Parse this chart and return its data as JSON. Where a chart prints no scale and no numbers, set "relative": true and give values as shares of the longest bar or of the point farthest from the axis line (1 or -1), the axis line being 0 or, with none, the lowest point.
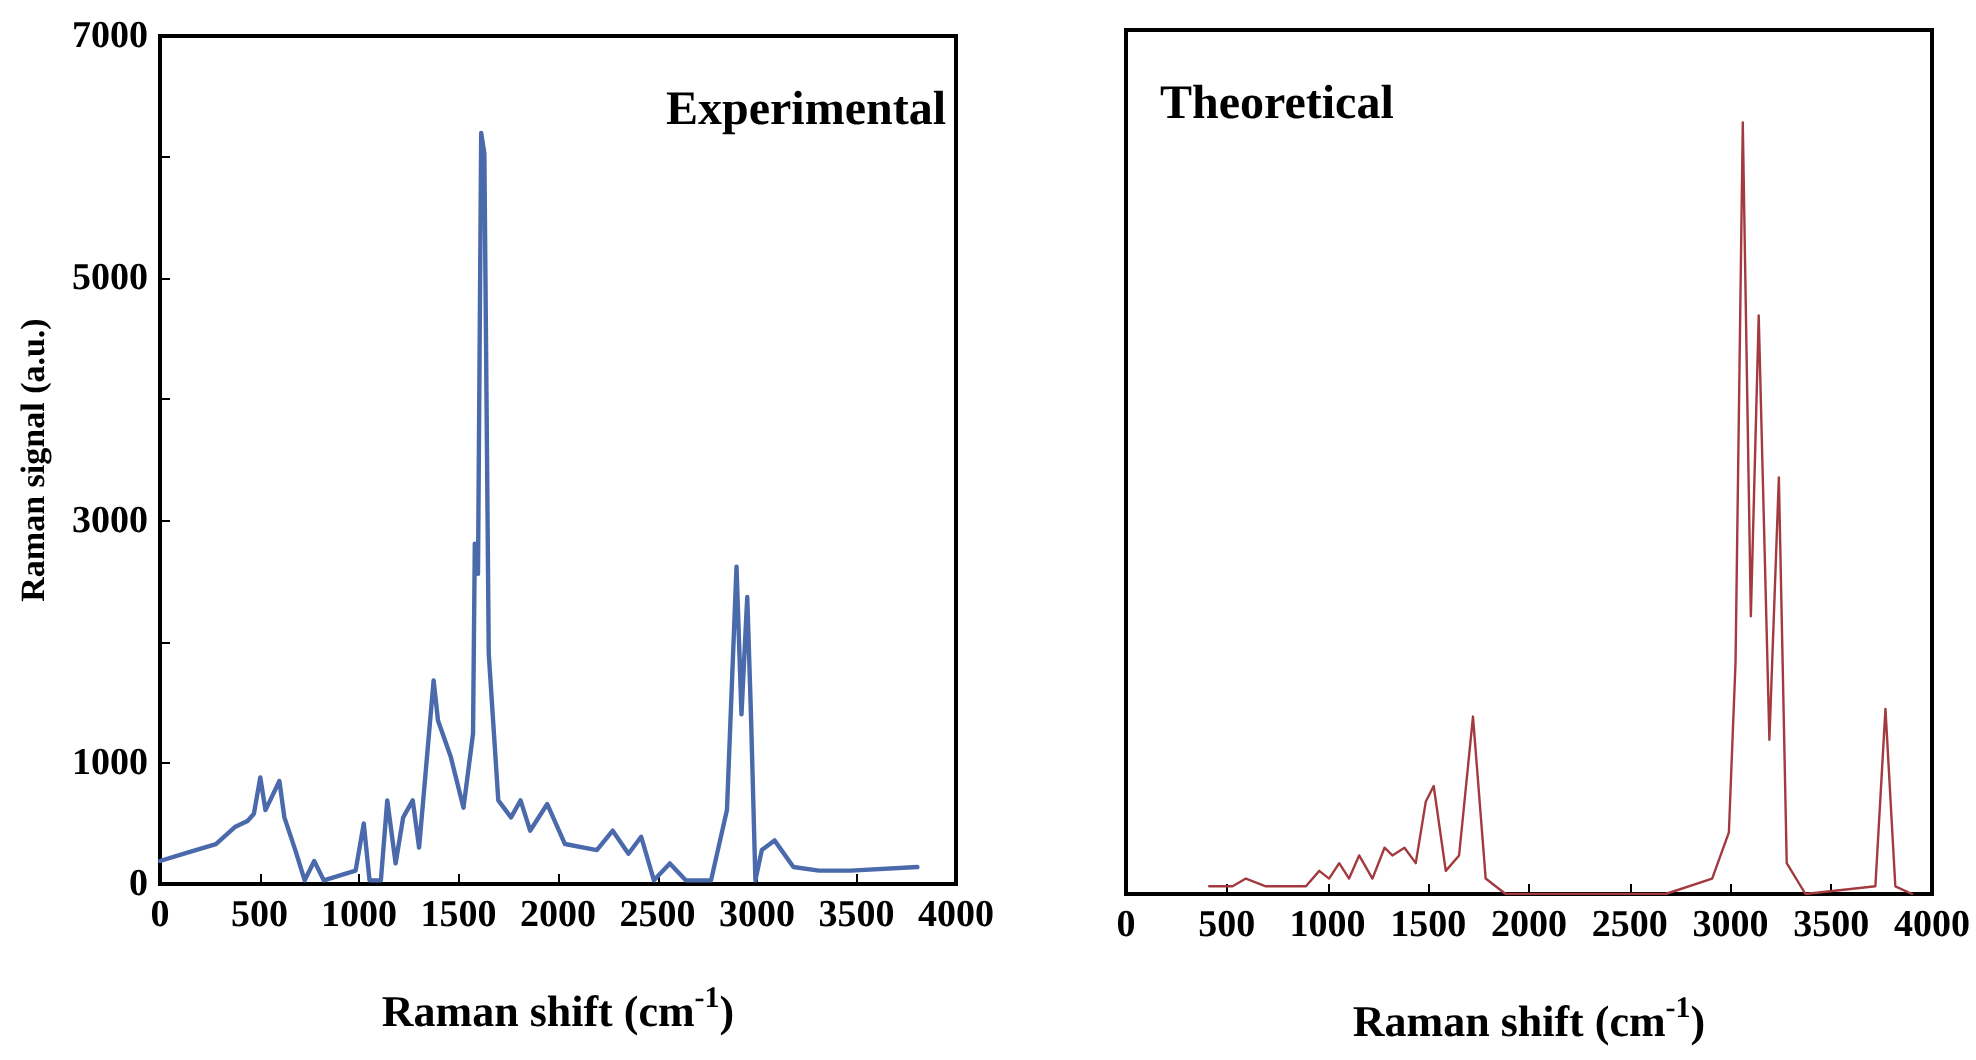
{
  "chart_data": [
    {
      "type": "line",
      "title": "Experimental",
      "xlabel": "Raman shift (cm$^{-1}$)",
      "ylabel": "Raman signal (a.u.)",
      "x": [
        0,
        121,
        281,
        376,
        440,
        472,
        504,
        530,
        600,
        625,
        680,
        727,
        775,
        823,
        983,
        1024,
        1053,
        1110,
        1142,
        1184,
        1222,
        1270,
        1302,
        1375,
        1397,
        1461,
        1525,
        1573,
        1582,
        1598,
        1614,
        1630,
        1652,
        1700,
        1764,
        1812,
        1860,
        1946,
        2035,
        2195,
        2275,
        2354,
        2418,
        2482,
        2562,
        2642,
        2769,
        2849,
        2897,
        2922,
        2951,
        2970,
        2992,
        3024,
        3088,
        3183,
        3311,
        3471,
        3806
      ],
      "series": [
        {
          "color": "#4a6aab",
          "values": [
            190,
            250,
            330,
            470,
            520,
            580,
            880,
            610,
            850,
            550,
            280,
            30,
            190,
            30,
            110,
            500,
            30,
            30,
            690,
            170,
            550,
            690,
            300,
            1680,
            1350,
            1050,
            630,
            1240,
            2810,
            2560,
            6200,
            6030,
            1900,
            690,
            550,
            690,
            440,
            660,
            330,
            280,
            440,
            250,
            390,
            30,
            170,
            30,
            30,
            610,
            2620,
            1400,
            2370,
            1380,
            30,
            280,
            360,
            140,
            110,
            110,
            140
          ]
        }
      ],
      "xlim": [
        0,
        4000
      ],
      "xticks": [
        0,
        500,
        1000,
        1500,
        2000,
        2500,
        3000,
        3500,
        4000
      ],
      "ylim": [
        0,
        7000
      ],
      "yticks": [
        0,
        1000,
        {
          "value": 2000,
          "label": null
        },
        3000,
        {
          "value": 4000,
          "label": null
        },
        5000,
        {
          "value": 6000,
          "label": null
        },
        7000
      ],
      "grid": false,
      "marker": "none",
      "line_style": "solid"
    },
    {
      "type": "line",
      "title": "Theoretical",
      "xlabel": "Raman shift (cm$^{-1}$)",
      "relative": true,
      "x": [
        413,
        529,
        595,
        694,
        893,
        959,
        1008,
        1058,
        1107,
        1157,
        1223,
        1283,
        1322,
        1382,
        1438,
        1488,
        1527,
        1587,
        1653,
        1722,
        1785,
        1884,
        2678,
        2909,
        2992,
        3025,
        3061,
        3101,
        3140,
        3193,
        3240,
        3279,
        3372,
        3719,
        3769,
        3818,
        3901
      ],
      "series": [
        {
          "color": "#a33a3f",
          "values": [
            0.01,
            0.01,
            0.02,
            0.01,
            0.01,
            0.03,
            0.02,
            0.04,
            0.02,
            0.05,
            0.02,
            0.06,
            0.05,
            0.06,
            0.04,
            0.12,
            0.14,
            0.03,
            0.05,
            0.23,
            0.02,
            0,
            0,
            0.02,
            0.08,
            0.3,
            1,
            0.36,
            0.75,
            0.2,
            0.54,
            0.04,
            0,
            0.01,
            0.24,
            0.01,
            0
          ]
        }
      ],
      "xlim": [
        0,
        4000
      ],
      "xticks": [
        0,
        500,
        1000,
        1500,
        2000,
        2500,
        3000,
        3500,
        4000
      ],
      "grid": false,
      "marker": "none",
      "line_style": "solid"
    }
  ]
}
